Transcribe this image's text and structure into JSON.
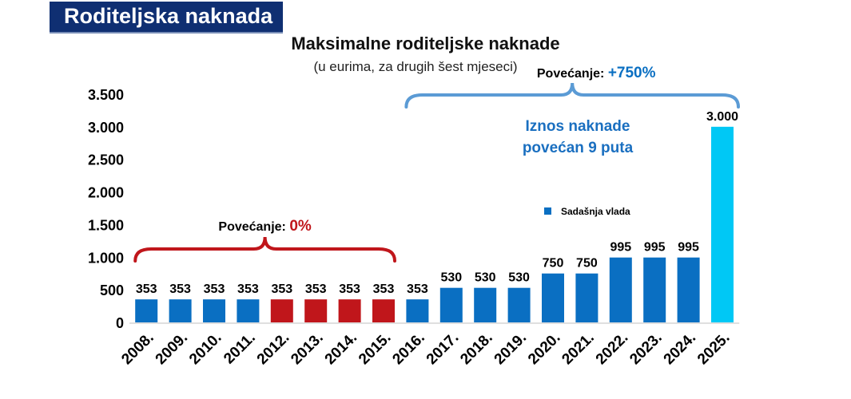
{
  "header": {
    "banner": "Roditeljska naknada"
  },
  "chart_data": {
    "type": "bar",
    "title": "Maksimalne roditeljske naknade",
    "subtitle": "(u eurima, za drugih šest mjeseci)",
    "xlabel": "",
    "ylabel": "",
    "ylim": [
      0,
      3500
    ],
    "yticks": [
      0,
      500,
      1000,
      1500,
      2000,
      2500,
      3000,
      3500
    ],
    "ytick_labels": [
      "0",
      "500",
      "1.000",
      "1.500",
      "2.000",
      "2.500",
      "3.000",
      "3.500"
    ],
    "categories": [
      "2008.",
      "2009.",
      "2010.",
      "2011.",
      "2012.",
      "2013.",
      "2014.",
      "2015.",
      "2016.",
      "2017.",
      "2018.",
      "2019.",
      "2020.",
      "2021.",
      "2022.",
      "2023.",
      "2024.",
      "2025."
    ],
    "values": [
      353,
      353,
      353,
      353,
      353,
      353,
      353,
      353,
      353,
      530,
      530,
      530,
      750,
      750,
      995,
      995,
      995,
      3000
    ],
    "value_labels": [
      "353",
      "353",
      "353",
      "353",
      "353",
      "353",
      "353",
      "353",
      "353",
      "530",
      "530",
      "530",
      "750",
      "750",
      "995",
      "995",
      "995",
      "3.000"
    ],
    "bar_colors": [
      "#0a6fc2",
      "#0a6fc2",
      "#0a6fc2",
      "#0a6fc2",
      "#c0161b",
      "#c0161b",
      "#c0161b",
      "#c0161b",
      "#0a6fc2",
      "#0a6fc2",
      "#0a6fc2",
      "#0a6fc2",
      "#0a6fc2",
      "#0a6fc2",
      "#0a6fc2",
      "#0a6fc2",
      "#0a6fc2",
      "#00c8f5"
    ],
    "grid": false,
    "legend": {
      "label": "Sadašnja vlada",
      "color": "#0a6fc2",
      "position": "center-right"
    },
    "annotations": {
      "left_brace": {
        "prefix": "Povećanje: ",
        "value": "0%",
        "value_color": "#c0161b",
        "from_category": "2008.",
        "to_category": "2015."
      },
      "right_brace": {
        "prefix": "Povećanje: ",
        "value": "+750%",
        "value_color": "#0a6fc2",
        "from_category": "2016.",
        "to_category": "2025."
      },
      "note_line1": "Iznos naknade",
      "note_line2": "povećan 9 puta",
      "note_color": "#1a6fc0"
    }
  }
}
